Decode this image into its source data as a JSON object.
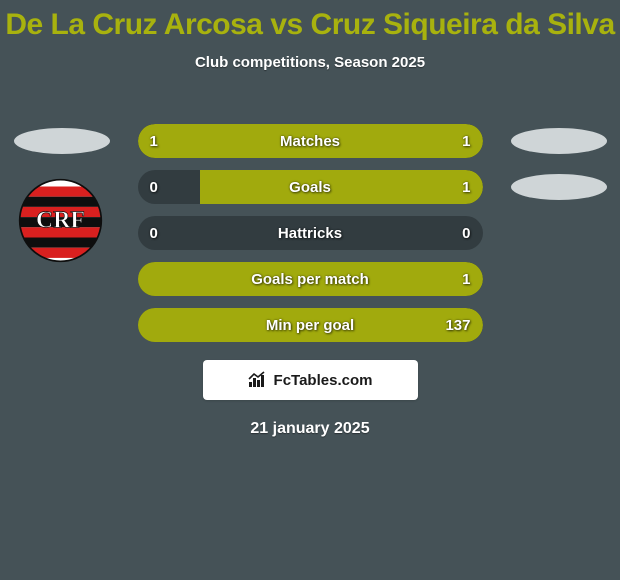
{
  "background_color": "#455257",
  "title": {
    "text": "De La Cruz Arcosa vs Cruz Siqueira da Silva",
    "color": "#a8b20e",
    "fontsize": 30
  },
  "subtitle": {
    "text": "Club competitions, Season 2025",
    "color": "#ffffff",
    "fontsize": 15
  },
  "date": {
    "text": "21 january 2025",
    "color": "#ffffff",
    "fontsize": 16
  },
  "side_ovals": {
    "left_color": "#cfd5d7",
    "right_color": "#cfd5d7"
  },
  "bars": {
    "track_color": "#323c40",
    "left_fill_color": "#a1aa0d",
    "right_fill_color": "#a1aa0d",
    "label_color": "#ffffff",
    "value_color": "#ffffff"
  },
  "rows": [
    {
      "label": "Matches",
      "left_value": "1",
      "right_value": "1",
      "left_pct": 50,
      "right_pct": 50
    },
    {
      "label": "Goals",
      "left_value": "0",
      "right_value": "1",
      "left_pct": 0,
      "right_pct": 82
    },
    {
      "label": "Hattricks",
      "left_value": "0",
      "right_value": "0",
      "left_pct": 0,
      "right_pct": 0
    },
    {
      "label": "Goals per match",
      "left_value": "",
      "right_value": "1",
      "left_pct": 0,
      "right_pct": 100
    },
    {
      "label": "Min per goal",
      "left_value": "",
      "right_value": "137",
      "left_pct": 0,
      "right_pct": 100
    }
  ],
  "brand": {
    "text": "FcTables.com",
    "text_color": "#1a1a1a",
    "box_bg": "#ffffff"
  },
  "crest": {
    "name": "flamengo-crest",
    "outer_bg": "#ffffff",
    "stripe_red": "#d9201f",
    "stripe_black": "#0e0e0e",
    "monogram_fill": "#ffffff"
  }
}
